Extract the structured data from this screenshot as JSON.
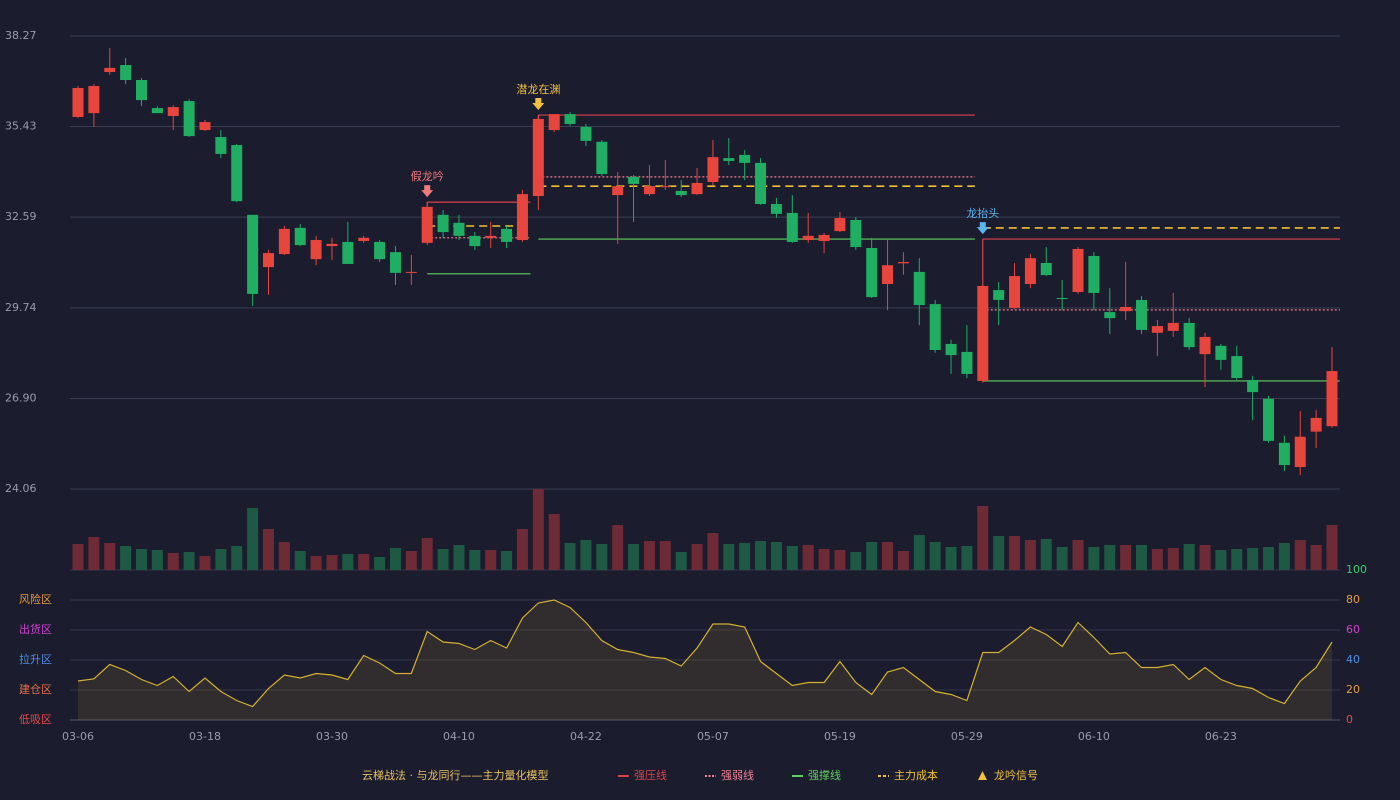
{
  "chart_data": {
    "type": "candlestick",
    "x": [
      "03-06",
      null,
      null,
      null,
      null,
      null,
      null,
      null,
      "03-18",
      null,
      null,
      null,
      null,
      null,
      null,
      null,
      "03-30",
      null,
      null,
      null,
      null,
      null,
      null,
      null,
      "04-10",
      null,
      null,
      null,
      null,
      null,
      null,
      null,
      "04-22",
      null,
      null,
      null,
      null,
      null,
      null,
      null,
      "05-07",
      null,
      null,
      null,
      null,
      null,
      null,
      null,
      "05-19",
      null,
      null,
      null,
      null,
      null,
      null,
      null,
      "05-29",
      null,
      null,
      null,
      null,
      null,
      null,
      null,
      "06-10",
      null,
      null,
      null,
      null,
      null,
      null,
      null,
      "06-23",
      null,
      null,
      null,
      null,
      null,
      null,
      null
    ],
    "open": [
      35.73,
      35.85,
      37.14,
      37.36,
      36.89,
      36.01,
      35.76,
      36.23,
      35.32,
      35.1,
      34.85,
      32.66,
      31.02,
      31.43,
      32.25,
      31.27,
      31.68,
      31.81,
      31.84,
      31.81,
      31.49,
      30.84,
      31.78,
      32.66,
      32.41,
      32.0,
      31.94,
      32.22,
      31.87,
      33.25,
      35.32,
      35.82,
      35.42,
      34.95,
      33.28,
      33.85,
      33.31,
      33.53,
      33.41,
      33.31,
      33.69,
      34.44,
      34.54,
      34.29,
      33.0,
      32.72,
      31.87,
      31.84,
      32.15,
      32.5,
      31.62,
      30.49,
      31.14,
      30.87,
      29.86,
      28.61,
      28.36,
      27.45,
      30.3,
      29.74,
      30.49,
      31.15,
      30.05,
      30.24,
      31.37,
      29.61,
      29.64,
      29.99,
      28.96,
      29.02,
      29.27,
      28.29,
      28.55,
      28.23,
      27.48,
      26.89,
      25.51,
      24.75,
      25.86,
      26.03
    ],
    "high": [
      36.7,
      36.76,
      37.89,
      37.58,
      36.95,
      36.07,
      36.1,
      36.29,
      35.64,
      35.32,
      34.88,
      32.66,
      31.56,
      32.31,
      32.37,
      32.0,
      31.94,
      32.44,
      32.0,
      31.87,
      31.68,
      31.4,
      33.06,
      32.81,
      32.66,
      32.12,
      32.44,
      32.31,
      33.44,
      35.73,
      35.82,
      35.89,
      35.51,
      35.01,
      34.0,
      33.91,
      34.22,
      34.38,
      33.75,
      34.13,
      35.01,
      35.07,
      34.69,
      34.44,
      33.19,
      33.28,
      32.72,
      32.09,
      32.75,
      32.59,
      31.94,
      31.87,
      31.49,
      31.3,
      29.99,
      28.74,
      29.2,
      30.46,
      30.55,
      31.15,
      31.43,
      31.65,
      30.62,
      31.65,
      31.49,
      30.36,
      31.18,
      30.11,
      29.36,
      30.21,
      29.42,
      28.96,
      28.61,
      28.55,
      27.61,
      26.98,
      25.73,
      26.51,
      26.54,
      28.51
    ],
    "low": [
      35.7,
      35.42,
      37.05,
      36.76,
      36.07,
      35.85,
      35.32,
      35.1,
      35.29,
      34.44,
      33.06,
      29.8,
      30.15,
      31.4,
      31.68,
      31.08,
      31.24,
      31.12,
      31.78,
      31.18,
      30.46,
      30.46,
      31.71,
      31.94,
      31.87,
      31.56,
      31.62,
      31.62,
      31.81,
      32.81,
      35.26,
      35.45,
      34.82,
      33.88,
      31.75,
      32.44,
      33.25,
      33.44,
      33.22,
      33.28,
      33.59,
      34.22,
      33.75,
      32.97,
      32.56,
      31.78,
      31.78,
      31.46,
      32.12,
      31.56,
      30.05,
      29.67,
      30.78,
      29.2,
      28.33,
      27.67,
      27.54,
      27.39,
      29.2,
      29.71,
      30.36,
      30.74,
      29.67,
      30.18,
      29.67,
      28.92,
      29.36,
      28.92,
      28.23,
      28.83,
      28.42,
      27.26,
      27.8,
      27.48,
      26.22,
      25.51,
      24.62,
      24.5,
      25.35,
      25.98
    ],
    "close": [
      36.64,
      36.7,
      37.27,
      36.89,
      36.26,
      35.85,
      36.04,
      35.13,
      35.57,
      34.57,
      33.09,
      30.18,
      31.46,
      32.22,
      31.71,
      31.87,
      31.75,
      31.12,
      31.94,
      31.27,
      30.84,
      30.87,
      32.91,
      32.12,
      32.0,
      31.68,
      32.0,
      31.81,
      33.31,
      35.67,
      35.82,
      35.51,
      34.98,
      33.94,
      33.56,
      33.63,
      33.56,
      33.56,
      33.28,
      33.66,
      34.47,
      34.35,
      34.29,
      33.0,
      32.69,
      31.81,
      32.0,
      32.03,
      32.56,
      31.65,
      30.08,
      31.08,
      31.18,
      29.83,
      28.42,
      28.26,
      27.67,
      30.43,
      29.99,
      30.74,
      31.3,
      30.77,
      30.02,
      31.59,
      30.21,
      29.42,
      29.77,
      29.05,
      29.17,
      29.27,
      28.51,
      28.83,
      28.11,
      27.54,
      27.1,
      25.57,
      24.81,
      25.7,
      26.29,
      27.76
    ],
    "up_color": "#e8453c",
    "down_color": "#1fae62",
    "ylim": [
      24.06,
      38.27
    ],
    "yticks": [
      24.06,
      {
        "value": 26.9,
        "label": "26.90"
      },
      29.74,
      32.59,
      35.43,
      38.27
    ],
    "grid": true,
    "volume": [
      26,
      33,
      27,
      24,
      21,
      20,
      17,
      18,
      14,
      21,
      24,
      62,
      41,
      28,
      19,
      14,
      15,
      16,
      16,
      13,
      22,
      19,
      32,
      21,
      25,
      20,
      20,
      19,
      41,
      81,
      56,
      27,
      30,
      26,
      45,
      26,
      29,
      29,
      18,
      26,
      37,
      26,
      27,
      29,
      28,
      24,
      25,
      21,
      20,
      18,
      28,
      28,
      19,
      35,
      28,
      23,
      24,
      64,
      34,
      34,
      30,
      31,
      23,
      30,
      23,
      25,
      25,
      25,
      21,
      22,
      26,
      25,
      20,
      21,
      22,
      23,
      27,
      30,
      25,
      45
    ],
    "volume_up_color": "#6e2b35",
    "volume_down_color": "#1e5944",
    "indicator": {
      "values": [
        26,
        27.5,
        37,
        33,
        27,
        23,
        29,
        19,
        28,
        19,
        13,
        9,
        21,
        30,
        28,
        31,
        30,
        27,
        43,
        38,
        31,
        31,
        59,
        52,
        51,
        47,
        53,
        48,
        68,
        78,
        80,
        75,
        65,
        53,
        47,
        45,
        42,
        41,
        36,
        48,
        64,
        64,
        62,
        39,
        31,
        23,
        25,
        25,
        39,
        25,
        17,
        32,
        35,
        27,
        19,
        17,
        13,
        45,
        45,
        53,
        62,
        57,
        49,
        65,
        55,
        44,
        45,
        35,
        35,
        37,
        27,
        35,
        27,
        23,
        21,
        15,
        11,
        26,
        35,
        52
      ],
      "color": "#d4b030",
      "ylim": [
        0,
        100
      ],
      "yticks": [
        0,
        20,
        40,
        60,
        80,
        100
      ],
      "ytick_colors": [
        "#e84a4a",
        "#e89a40",
        "#4a90e8",
        "#d040d0",
        "#e89a40",
        "#3ad060"
      ],
      "zones": [
        {
          "label": "低吸区",
          "value": 0,
          "color": "#e84a4a"
        },
        {
          "label": "建仓区",
          "value": 20,
          "color": "#e8704a"
        },
        {
          "label": "拉升区",
          "value": 40,
          "color": "#4a90e8"
        },
        {
          "label": "出货区",
          "value": 60,
          "color": "#d040d0"
        },
        {
          "label": "风险区",
          "value": 80,
          "color": "#e89a40"
        }
      ]
    },
    "levels": [
      {
        "legend": 0,
        "value": 33.06,
        "from": 22,
        "to": 28
      },
      {
        "legend": 2,
        "value": 30.81,
        "from": 22,
        "to": 28
      },
      {
        "legend": 1,
        "value": 31.94,
        "from": 22,
        "to": 28
      },
      {
        "legend": 3,
        "value": 32.31,
        "from": 22,
        "to": 28
      },
      {
        "legend": 0,
        "value": 35.79,
        "from": 29,
        "to": 56
      },
      {
        "legend": 2,
        "value": 31.9,
        "from": 29,
        "to": 56
      },
      {
        "legend": 1,
        "value": 33.85,
        "from": 29,
        "to": 56
      },
      {
        "legend": 3,
        "value": 33.56,
        "from": 29,
        "to": 56
      },
      {
        "legend": 0,
        "value": 31.9,
        "from": 57,
        "to": 79
      },
      {
        "legend": 2,
        "value": 27.45,
        "from": 57,
        "to": 79
      },
      {
        "legend": 1,
        "value": 29.68,
        "from": 57,
        "to": 79
      },
      {
        "legend": 3,
        "value": 32.25,
        "from": 57,
        "to": 79
      }
    ],
    "signals": [
      {
        "label": "假龙吟",
        "index": 22,
        "color": "#f07a7a"
      },
      {
        "label": "潜龙在渊",
        "index": 29,
        "color": "#f0c040"
      },
      {
        "label": "龙抬头",
        "index": 57,
        "color": "#5ab4f0"
      }
    ],
    "legend_title": "云梯战法 · 与龙同行——主力量化模型",
    "legend_title_color": "#e8c060",
    "legend": [
      {
        "name": "强压线",
        "color": "#d9434a",
        "style": "solid"
      },
      {
        "name": "强弱线",
        "color": "#f08090",
        "style": "dotted"
      },
      {
        "name": "强撑线",
        "color": "#5fd05f",
        "style": "solid"
      },
      {
        "name": "主力成本",
        "color": "#f0c030",
        "style": "dashed"
      },
      {
        "name": "龙吟信号",
        "color": "#f0c040",
        "style": "triangle"
      }
    ]
  }
}
